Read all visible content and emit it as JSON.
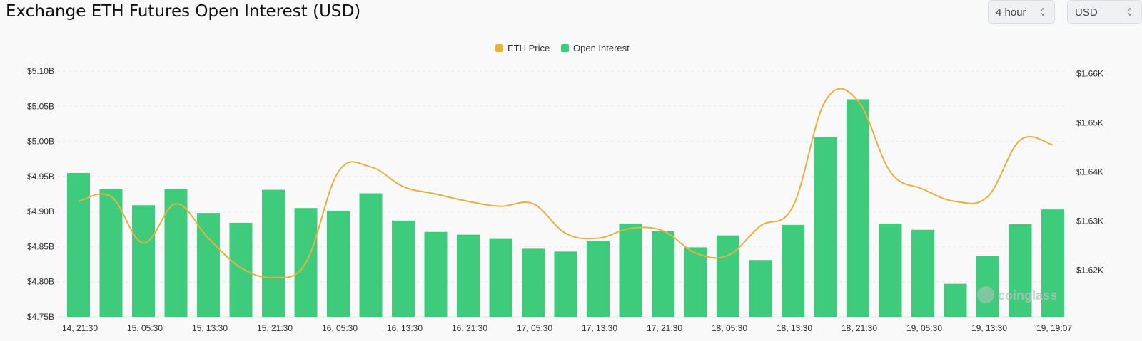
{
  "header": {
    "title": "Exchange ETH Futures Open Interest (USD)",
    "interval_select": "4 hour",
    "unit_select": "USD"
  },
  "colors": {
    "price_line": "#e8b13d",
    "bar": "#3ecb7c",
    "grid": "#e6e8eb",
    "axis_text": "#333333",
    "watermark": "#b6c2bc"
  },
  "icons": {
    "select_arrows": "up-down-chevron-icon",
    "watermark_logo": "coinglass-logo"
  },
  "chart_data": {
    "type": "bar",
    "title": "",
    "watermark": "coinglass",
    "legend": {
      "placement": "top-center",
      "items": [
        "ETH Price",
        "Open Interest"
      ]
    },
    "grid": true,
    "categories": [
      "14, 21:30",
      "",
      "15, 05:30",
      "",
      "15, 13:30",
      "",
      "15, 21:30",
      "",
      "16, 05:30",
      "",
      "16, 13:30",
      "",
      "16, 21:30",
      "",
      "17, 05:30",
      "",
      "17, 13:30",
      "",
      "17, 21:30",
      "",
      "18, 05:30",
      "",
      "18, 13:30",
      "",
      "18, 21:30",
      "",
      "19, 05:30",
      "",
      "19, 13:30",
      "",
      "19, 19:07"
    ],
    "x_tick_labels": [
      "14, 21:30",
      "15, 05:30",
      "15, 13:30",
      "15, 21:30",
      "16, 05:30",
      "16, 13:30",
      "16, 21:30",
      "17, 05:30",
      "17, 13:30",
      "17, 21:30",
      "18, 05:30",
      "18, 13:30",
      "18, 21:30",
      "19, 05:30",
      "19, 13:30",
      "19, 19:07"
    ],
    "y_left": {
      "label": "",
      "range": [
        4.75,
        5.1
      ],
      "ticks": [
        4.75,
        4.8,
        4.85,
        4.9,
        4.95,
        5.0,
        5.05,
        5.1
      ],
      "tick_labels": [
        "$4.75B",
        "$4.80B",
        "$4.85B",
        "$4.90B",
        "$4.95B",
        "$5.00B",
        "$5.05B",
        "$5.10B"
      ]
    },
    "y_right": {
      "label": "",
      "range": [
        1.6105,
        1.6605
      ],
      "ticks": [
        1.62,
        1.63,
        1.64,
        1.65,
        1.66
      ],
      "tick_labels": [
        "$1.62K",
        "$1.63K",
        "$1.64K",
        "$1.65K",
        "$1.66K"
      ]
    },
    "series": [
      {
        "name": "Open Interest",
        "type": "bar",
        "axis": "left",
        "values": [
          4.955,
          4.932,
          4.909,
          4.932,
          4.898,
          4.884,
          4.931,
          4.905,
          4.901,
          4.926,
          4.887,
          4.871,
          4.867,
          4.861,
          4.847,
          4.843,
          4.858,
          4.883,
          4.872,
          4.849,
          4.866,
          4.831,
          4.881,
          5.006,
          5.06,
          4.883,
          4.874,
          4.797,
          4.837,
          4.882,
          4.903
        ]
      },
      {
        "name": "ETH Price",
        "type": "line",
        "axis": "right",
        "values": [
          1.634,
          1.635,
          1.6255,
          1.6335,
          1.6265,
          1.6205,
          1.6185,
          1.6215,
          1.64,
          1.641,
          1.637,
          1.6355,
          1.634,
          1.633,
          1.6335,
          1.6275,
          1.6265,
          1.6285,
          1.628,
          1.6235,
          1.623,
          1.629,
          1.633,
          1.6545,
          1.6545,
          1.64,
          1.6365,
          1.634,
          1.635,
          1.6465,
          1.6455
        ]
      }
    ]
  }
}
